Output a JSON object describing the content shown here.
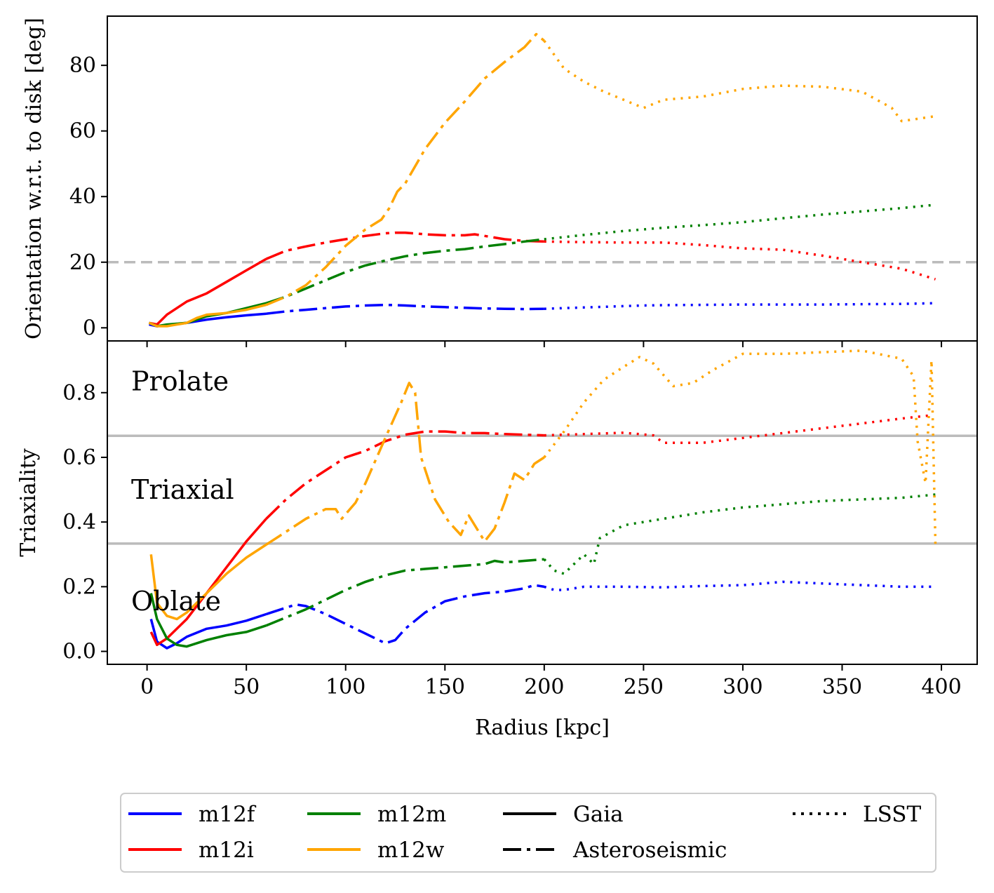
{
  "chart_data": [
    {
      "type": "line",
      "panel": "top",
      "ylabel": "Orientation w.r.t. to disk [deg]",
      "xlabel": "",
      "xlim": [
        -20,
        418
      ],
      "ylim": [
        -4,
        95
      ],
      "yticks": [
        0,
        20,
        40,
        60,
        80
      ],
      "reference_lines": [
        {
          "y": 20,
          "style": "dashed",
          "color": "#bbbbbb"
        }
      ],
      "series": [
        {
          "name": "m12f",
          "color": "#0000ff",
          "x": [
            1,
            5,
            10,
            20,
            30,
            40,
            50,
            60,
            70,
            80,
            90,
            100,
            110,
            120,
            130,
            140,
            150,
            160,
            170,
            180,
            190,
            200,
            210,
            220,
            230,
            240,
            250,
            260,
            280,
            300,
            320,
            340,
            360,
            380,
            397
          ],
          "y": [
            1,
            0.5,
            0.8,
            1.5,
            2.5,
            3.2,
            3.8,
            4.3,
            5,
            5.5,
            6,
            6.5,
            6.8,
            7,
            6.8,
            6.5,
            6.3,
            6.1,
            5.9,
            5.8,
            5.7,
            5.8,
            6,
            6.2,
            6.4,
            6.6,
            6.8,
            6.9,
            7,
            7.1,
            7.1,
            7.1,
            7.2,
            7.3,
            7.5
          ]
        },
        {
          "name": "m12i",
          "color": "#ff0000",
          "x": [
            1,
            5,
            10,
            20,
            30,
            40,
            50,
            60,
            70,
            80,
            90,
            100,
            110,
            120,
            125,
            130,
            140,
            150,
            160,
            165,
            170,
            180,
            190,
            200,
            220,
            240,
            260,
            280,
            300,
            320,
            340,
            360,
            380,
            397
          ],
          "y": [
            1.5,
            1,
            4,
            8,
            10.5,
            14,
            17.5,
            21,
            23.5,
            24.8,
            26,
            27,
            28,
            28.8,
            29,
            29,
            28.5,
            28.2,
            28.2,
            28.5,
            28,
            27,
            26.5,
            26.3,
            26.1,
            26,
            26,
            25.2,
            24.2,
            23.8,
            22,
            20,
            18,
            14.8
          ]
        },
        {
          "name": "m12m",
          "color": "#008000",
          "x": [
            1,
            5,
            10,
            20,
            30,
            40,
            50,
            60,
            70,
            80,
            90,
            100,
            110,
            120,
            130,
            140,
            150,
            160,
            170,
            180,
            190,
            200,
            220,
            240,
            260,
            280,
            300,
            320,
            340,
            360,
            380,
            397
          ],
          "y": [
            1.5,
            0.5,
            1,
            1.5,
            3.5,
            4.5,
            6,
            7.5,
            9.5,
            12,
            14.5,
            17,
            19,
            20.5,
            21.8,
            22.8,
            23.5,
            24,
            24.8,
            25.5,
            26.3,
            27,
            28.3,
            29.5,
            30.5,
            31.3,
            32.2,
            33.4,
            34.5,
            35.5,
            36.5,
            37.5
          ]
        },
        {
          "name": "m12w",
          "color": "#ffa500",
          "x": [
            1,
            5,
            10,
            20,
            25,
            30,
            40,
            50,
            60,
            70,
            80,
            90,
            100,
            110,
            118,
            122,
            126,
            130,
            140,
            150,
            160,
            170,
            180,
            190,
            196,
            200,
            210,
            220,
            230,
            240,
            250,
            260,
            280,
            300,
            320,
            340,
            360,
            375,
            380,
            397
          ],
          "y": [
            1.5,
            0.5,
            0.5,
            1.5,
            3,
            4,
            4.5,
            5.5,
            7,
            9.5,
            13,
            18.5,
            25,
            30,
            33,
            36.5,
            41.5,
            44,
            54.5,
            62.5,
            69,
            76,
            81,
            85.5,
            89.5,
            87.5,
            79,
            75,
            72,
            69.5,
            67,
            69.5,
            70.5,
            72.8,
            73.8,
            73.5,
            72,
            67,
            63,
            64.5
          ]
        }
      ]
    },
    {
      "type": "line",
      "panel": "bottom",
      "ylabel": "Triaxiality",
      "xlabel": "Radius [kpc]",
      "xlim": [
        -20,
        418
      ],
      "ylim": [
        -0.04,
        0.96
      ],
      "yticks": [
        0.0,
        0.2,
        0.4,
        0.6,
        0.8
      ],
      "xticks": [
        0,
        50,
        100,
        150,
        200,
        250,
        300,
        350,
        400
      ],
      "reference_lines": [
        {
          "y": 0.6667,
          "style": "solid",
          "color": "#bbbbbb"
        },
        {
          "y": 0.3333,
          "style": "solid",
          "color": "#bbbbbb"
        }
      ],
      "annotations": [
        {
          "text": "Prolate",
          "x": -8,
          "y": 0.835
        },
        {
          "text": "Triaxial",
          "x": -8,
          "y": 0.5
        },
        {
          "text": "Oblate",
          "x": -8,
          "y": 0.155
        }
      ],
      "series": [
        {
          "name": "m12f",
          "color": "#0000ff",
          "x": [
            2,
            5,
            10,
            15,
            20,
            30,
            40,
            50,
            60,
            70,
            75,
            80,
            90,
            100,
            110,
            120,
            125,
            130,
            140,
            150,
            160,
            170,
            180,
            190,
            195,
            200,
            205,
            210,
            220,
            240,
            260,
            280,
            300,
            310,
            320,
            340,
            360,
            380,
            397
          ],
          "y": [
            0.1,
            0.03,
            0.01,
            0.025,
            0.045,
            0.07,
            0.08,
            0.095,
            0.115,
            0.135,
            0.145,
            0.14,
            0.115,
            0.085,
            0.055,
            0.025,
            0.035,
            0.07,
            0.12,
            0.155,
            0.17,
            0.18,
            0.185,
            0.195,
            0.205,
            0.2,
            0.19,
            0.19,
            0.2,
            0.2,
            0.198,
            0.202,
            0.205,
            0.21,
            0.215,
            0.21,
            0.205,
            0.2,
            0.2
          ]
        },
        {
          "name": "m12i",
          "color": "#ff0000",
          "x": [
            2,
            5,
            10,
            20,
            30,
            40,
            50,
            60,
            70,
            80,
            90,
            95,
            100,
            110,
            120,
            130,
            140,
            150,
            160,
            170,
            180,
            190,
            200,
            220,
            240,
            255,
            260,
            280,
            300,
            320,
            340,
            360,
            380,
            395
          ],
          "y": [
            0.06,
            0.02,
            0.04,
            0.1,
            0.18,
            0.26,
            0.34,
            0.41,
            0.47,
            0.52,
            0.56,
            0.58,
            0.6,
            0.62,
            0.65,
            0.67,
            0.68,
            0.68,
            0.675,
            0.675,
            0.672,
            0.67,
            0.668,
            0.672,
            0.676,
            0.668,
            0.645,
            0.645,
            0.66,
            0.675,
            0.69,
            0.705,
            0.72,
            0.73
          ]
        },
        {
          "name": "m12m",
          "color": "#008000",
          "x": [
            2,
            5,
            10,
            15,
            20,
            30,
            40,
            50,
            60,
            70,
            80,
            90,
            100,
            110,
            120,
            130,
            140,
            150,
            160,
            170,
            175,
            180,
            190,
            200,
            205,
            210,
            220,
            225,
            228,
            240,
            260,
            280,
            300,
            320,
            340,
            360,
            380,
            397
          ],
          "y": [
            0.18,
            0.1,
            0.04,
            0.02,
            0.015,
            0.035,
            0.05,
            0.06,
            0.08,
            0.105,
            0.13,
            0.16,
            0.19,
            0.215,
            0.235,
            0.25,
            0.255,
            0.26,
            0.265,
            0.27,
            0.28,
            0.275,
            0.28,
            0.285,
            0.25,
            0.24,
            0.3,
            0.27,
            0.35,
            0.39,
            0.41,
            0.43,
            0.445,
            0.455,
            0.465,
            0.47,
            0.475,
            0.485
          ]
        },
        {
          "name": "m12w",
          "color": "#ffa500",
          "x": [
            2,
            5,
            10,
            15,
            20,
            30,
            40,
            50,
            60,
            70,
            80,
            90,
            95,
            98,
            105,
            110,
            120,
            128,
            132,
            135,
            138,
            145,
            152,
            158,
            162,
            170,
            175,
            180,
            185,
            190,
            195,
            200,
            210,
            220,
            230,
            240,
            248,
            255,
            265,
            275,
            285,
            300,
            320,
            340,
            360,
            380,
            386,
            388,
            392,
            395,
            397
          ],
          "y": [
            0.3,
            0.15,
            0.11,
            0.1,
            0.12,
            0.18,
            0.24,
            0.29,
            0.33,
            0.37,
            0.41,
            0.44,
            0.44,
            0.41,
            0.46,
            0.52,
            0.66,
            0.77,
            0.83,
            0.8,
            0.6,
            0.47,
            0.4,
            0.36,
            0.42,
            0.34,
            0.38,
            0.46,
            0.55,
            0.53,
            0.58,
            0.6,
            0.68,
            0.77,
            0.84,
            0.88,
            0.91,
            0.89,
            0.82,
            0.83,
            0.87,
            0.92,
            0.92,
            0.925,
            0.93,
            0.905,
            0.85,
            0.65,
            0.52,
            0.9,
            0.33
          ]
        }
      ]
    }
  ],
  "segment_styles": {
    "Gaia": {
      "x_range": [
        0,
        60
      ],
      "dash": ""
    },
    "Asteroseismic": {
      "x_range": [
        60,
        200
      ],
      "dash": "26 8 5 8"
    },
    "LSST": {
      "x_range": [
        200,
        400
      ],
      "dash": "3 8"
    }
  },
  "legend": {
    "placement": "bottom-center",
    "entries": [
      {
        "label": "m12f",
        "color": "#0000ff",
        "style": "solid"
      },
      {
        "label": "m12i",
        "color": "#ff0000",
        "style": "solid"
      },
      {
        "label": "m12m",
        "color": "#008000",
        "style": "solid"
      },
      {
        "label": "m12w",
        "color": "#ffa500",
        "style": "solid"
      },
      {
        "label": "Gaia",
        "color": "#000000",
        "style": "solid"
      },
      {
        "label": "Asteroseismic",
        "color": "#000000",
        "style": "dashdot"
      },
      {
        "label": "LSST",
        "color": "#000000",
        "style": "dotted"
      }
    ]
  }
}
